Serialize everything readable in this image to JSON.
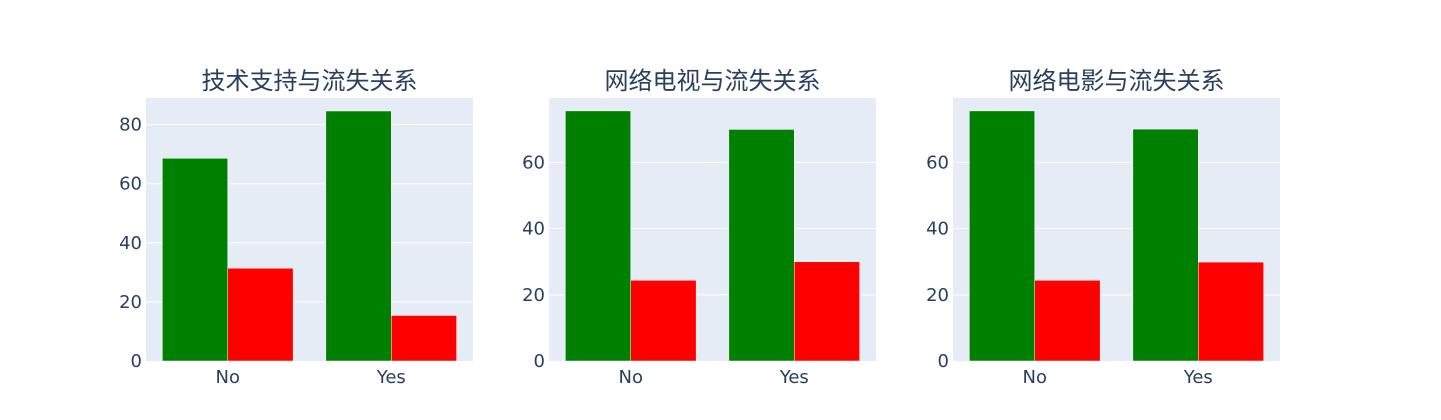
{
  "chart_data": [
    {
      "type": "bar",
      "title": "技术支持与流失关系",
      "categories": [
        "No",
        "Yes"
      ],
      "series": [
        {
          "values": [
            68.6,
            84.6
          ],
          "color": "#008000"
        },
        {
          "values": [
            31.4,
            15.4
          ],
          "color": "#ff0000"
        }
      ],
      "ylim": [
        0,
        89
      ],
      "yticks": [
        0,
        20,
        40,
        60,
        80
      ],
      "grid": true
    },
    {
      "type": "bar",
      "title": "网络电视与流失关系",
      "categories": [
        "No",
        "Yes"
      ],
      "series": [
        {
          "values": [
            75.6,
            70.0
          ],
          "color": "#008000"
        },
        {
          "values": [
            24.4,
            30.0
          ],
          "color": "#ff0000"
        }
      ],
      "ylim": [
        0,
        79.5
      ],
      "yticks": [
        0,
        20,
        40,
        60
      ],
      "grid": true
    },
    {
      "type": "bar",
      "title": "网络电影与流失关系",
      "categories": [
        "No",
        "Yes"
      ],
      "series": [
        {
          "values": [
            75.6,
            70.1
          ],
          "color": "#008000"
        },
        {
          "values": [
            24.4,
            29.9
          ],
          "color": "#ff0000"
        }
      ],
      "ylim": [
        0,
        79.5
      ],
      "yticks": [
        0,
        20,
        40,
        60
      ],
      "grid": true
    }
  ],
  "style": {
    "plot_background": "#e5ecf6",
    "grid_color": "#ffffff",
    "text_color": "#2a3f5f"
  }
}
